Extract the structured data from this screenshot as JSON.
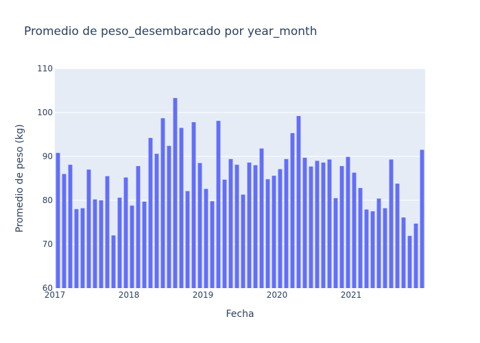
{
  "chart_data": {
    "type": "bar",
    "title": "Promedio de peso_desembarcado por year_month",
    "xlabel": "Fecha",
    "ylabel": "Promedio de peso (kg)",
    "ylim": [
      60,
      110
    ],
    "yticks": [
      60,
      70,
      80,
      90,
      100,
      110
    ],
    "xticks": [
      {
        "label": "2017",
        "date": "2017-01"
      },
      {
        "label": "2018",
        "date": "2018-01"
      },
      {
        "label": "2019",
        "date": "2019-01"
      },
      {
        "label": "2020",
        "date": "2020-01"
      },
      {
        "label": "2021",
        "date": "2021-01"
      }
    ],
    "grid": true,
    "bar_color": "#636efa",
    "plot_background": "#e5ecf6",
    "x": [
      "2017-01",
      "2017-02",
      "2017-03",
      "2017-04",
      "2017-05",
      "2017-06",
      "2017-07",
      "2017-08",
      "2017-09",
      "2017-10",
      "2017-11",
      "2017-12",
      "2018-01",
      "2018-02",
      "2018-03",
      "2018-04",
      "2018-05",
      "2018-06",
      "2018-07",
      "2018-08",
      "2018-09",
      "2018-10",
      "2018-11",
      "2018-12",
      "2019-01",
      "2019-02",
      "2019-03",
      "2019-04",
      "2019-05",
      "2019-06",
      "2019-07",
      "2019-08",
      "2019-09",
      "2019-10",
      "2019-11",
      "2019-12",
      "2020-01",
      "2020-02",
      "2020-03",
      "2020-04",
      "2020-05",
      "2020-06",
      "2020-07",
      "2020-08",
      "2020-09",
      "2020-10",
      "2020-11",
      "2020-12",
      "2021-01",
      "2021-02",
      "2021-03",
      "2021-04",
      "2021-05",
      "2021-06",
      "2021-07",
      "2021-08",
      "2021-09",
      "2021-10",
      "2021-11",
      "2021-12"
    ],
    "values": [
      90.8,
      86.0,
      88.1,
      78.0,
      78.2,
      87.0,
      80.2,
      80.0,
      85.5,
      72.0,
      80.6,
      85.2,
      78.8,
      87.8,
      79.7,
      94.2,
      90.6,
      98.7,
      92.4,
      103.3,
      96.5,
      82.1,
      97.8,
      88.5,
      82.6,
      79.8,
      98.1,
      84.7,
      89.4,
      88.1,
      81.3,
      88.6,
      88.0,
      91.8,
      84.8,
      85.6,
      87.1,
      89.4,
      95.3,
      99.2,
      89.7,
      87.7,
      89.0,
      88.6,
      89.3,
      80.5,
      87.8,
      89.9,
      86.3,
      82.8,
      77.9,
      77.5,
      80.4,
      78.2,
      89.3,
      83.8,
      76.1,
      71.9,
      74.7,
      91.5
    ]
  }
}
